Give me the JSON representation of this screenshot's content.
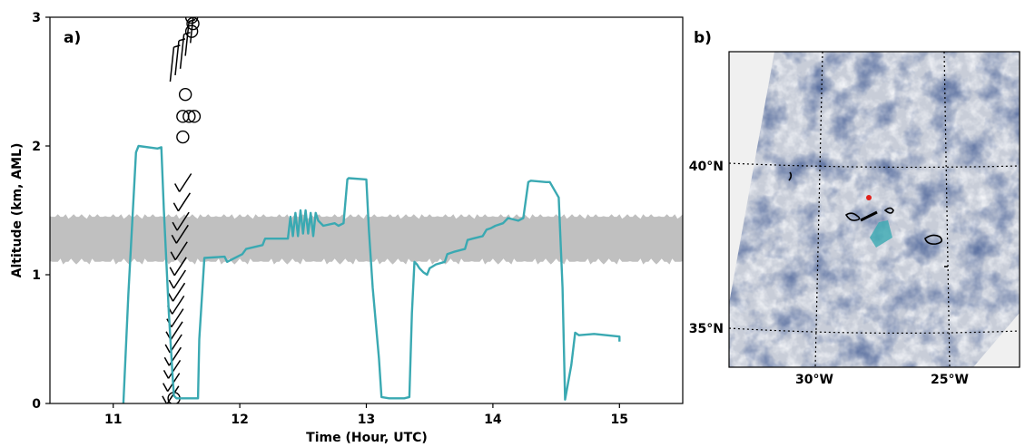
{
  "chart_data": [
    {
      "panel": "a)",
      "type": "line",
      "xlabel": "Time (Hour, UTC)",
      "ylabel": "Altitude (km, AML)",
      "xlim": [
        10.5,
        15.5
      ],
      "ylim": [
        0,
        3
      ],
      "xticks": [
        "11",
        "12",
        "13",
        "14",
        "15"
      ],
      "yticks": [
        "0",
        "1",
        "2",
        "3"
      ],
      "grid": false,
      "colors": {
        "flight_track": "#3aa9b2",
        "cloud_band": "#c0c0c0",
        "sounding": "#000000"
      },
      "band": {
        "x_start": 10.5,
        "x_end": 15.5,
        "lower_km": 1.1,
        "upper_km": 1.45
      },
      "series": [
        {
          "kind": "flight_altitude_line",
          "x": [
            11.08,
            11.12,
            11.18,
            11.2,
            11.35,
            11.38,
            11.4,
            11.44,
            11.47,
            11.48,
            11.5,
            11.52,
            11.6,
            11.64,
            11.67,
            11.68,
            11.72,
            11.88,
            11.9,
            12.02,
            12.05,
            12.18,
            12.2,
            12.38,
            12.4,
            12.42,
            12.44,
            12.46,
            12.48,
            12.5,
            12.52,
            12.54,
            12.56,
            12.58,
            12.6,
            12.62,
            12.66,
            12.75,
            12.78,
            12.82,
            12.85,
            12.86,
            13.0,
            13.02,
            13.05,
            13.1,
            13.12,
            13.18,
            13.3,
            13.34,
            13.36,
            13.38,
            13.4,
            13.42,
            13.45,
            13.48,
            13.5,
            13.55,
            13.62,
            13.64,
            13.7,
            13.78,
            13.8,
            13.84,
            13.92,
            13.95,
            13.98,
            14.02,
            14.08,
            14.12,
            14.2,
            14.24,
            14.28,
            14.3,
            14.42,
            14.45,
            14.52,
            14.55,
            14.57,
            14.62,
            14.65,
            14.68,
            14.8,
            15.0,
            15.0
          ],
          "y": [
            0.0,
            0.85,
            1.95,
            2.0,
            1.98,
            1.99,
            1.5,
            0.7,
            0.2,
            0.06,
            0.04,
            0.04,
            0.04,
            0.04,
            0.04,
            0.5,
            1.13,
            1.14,
            1.1,
            1.16,
            1.2,
            1.23,
            1.28,
            1.28,
            1.45,
            1.3,
            1.48,
            1.3,
            1.5,
            1.32,
            1.5,
            1.32,
            1.48,
            1.3,
            1.48,
            1.42,
            1.38,
            1.4,
            1.38,
            1.4,
            1.74,
            1.75,
            1.74,
            1.35,
            0.9,
            0.35,
            0.05,
            0.04,
            0.04,
            0.05,
            0.7,
            1.1,
            1.08,
            1.05,
            1.02,
            1.0,
            1.05,
            1.08,
            1.1,
            1.16,
            1.18,
            1.2,
            1.27,
            1.28,
            1.3,
            1.35,
            1.36,
            1.38,
            1.4,
            1.44,
            1.42,
            1.44,
            1.72,
            1.73,
            1.72,
            1.72,
            1.6,
            0.9,
            0.03,
            0.3,
            0.55,
            0.53,
            0.54,
            0.52,
            0.48
          ]
        },
        {
          "kind": "sounding_barbs_and_calms",
          "calm_circles": [
            {
              "x": 11.48,
              "y": 0.04
            },
            {
              "x": 11.55,
              "y": 2.07
            },
            {
              "x": 11.55,
              "y": 2.23
            },
            {
              "x": 11.6,
              "y": 2.23
            },
            {
              "x": 11.64,
              "y": 2.23
            },
            {
              "x": 11.57,
              "y": 2.4
            },
            {
              "x": 11.62,
              "y": 2.89
            },
            {
              "x": 11.63,
              "y": 2.95
            },
            {
              "x": 11.62,
              "y": 3.0
            }
          ],
          "barb_altitudes_lower": [
            1.75,
            1.6,
            1.45,
            1.35,
            1.22,
            1.1,
            1.0,
            0.9,
            0.8,
            0.7,
            0.6,
            0.5,
            0.4,
            0.3,
            0.2,
            0.1
          ],
          "barb_altitudes_upper": [
            2.5,
            2.55,
            2.6,
            2.7,
            2.8
          ]
        }
      ]
    },
    {
      "panel": "b)",
      "type": "map",
      "lat_labels": [
        "40°N",
        "35°N"
      ],
      "lon_labels": [
        "30°W",
        "25°W"
      ],
      "colors": {
        "ocean_bg": "#f0f0f0",
        "cloud_scene": "#c8cdd8",
        "clear_sky": "#1d2d5c",
        "flight_track": "#3aa9b2",
        "marker": "#e0201b",
        "contours": "#000000"
      }
    }
  ]
}
